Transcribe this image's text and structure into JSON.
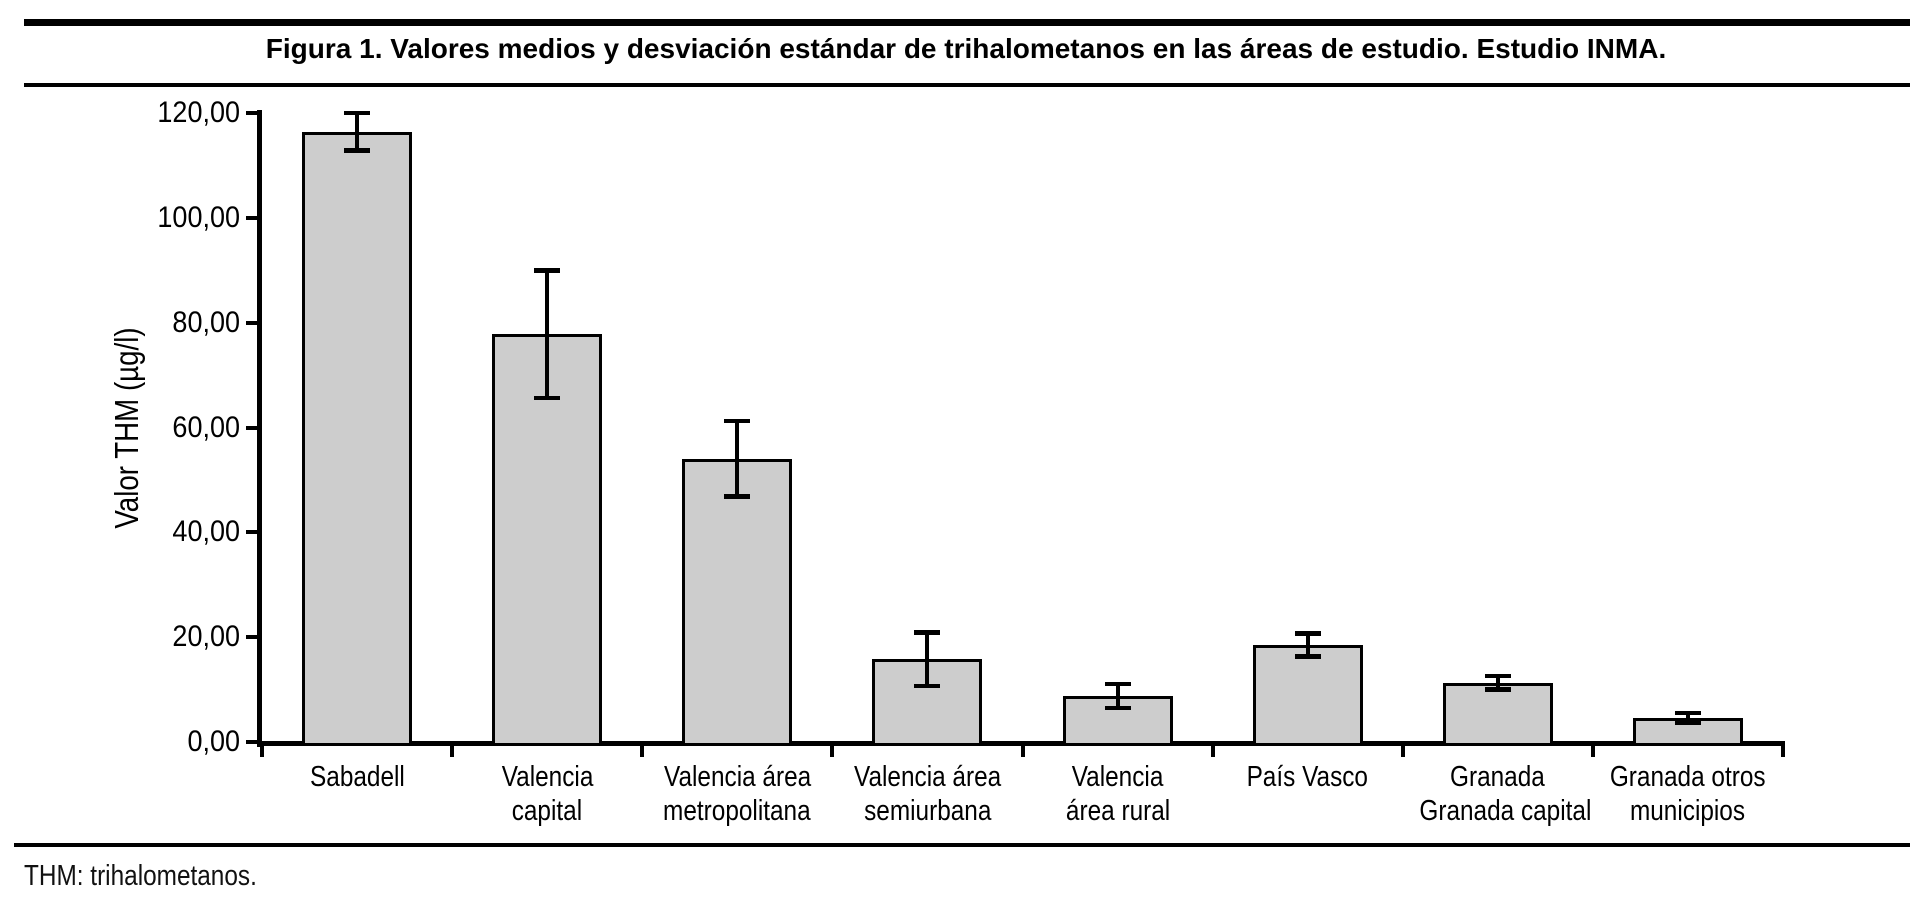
{
  "figure": {
    "title": "Figura 1. Valores medios y desviación estándar de trihalometanos en las áreas de estudio. Estudio INMA.",
    "footnote": "THM: trihalometanos."
  },
  "chart_data": {
    "type": "bar",
    "title": "Figura 1. Valores medios y desviación estándar de trihalometanos en las áreas de estudio. Estudio INMA.",
    "xlabel": "",
    "ylabel": "Valor THM (µg/l)",
    "ylim": [
      0,
      120
    ],
    "grid": false,
    "legend": "none",
    "error_bars": "desviación estándar (±1 SD)",
    "bar_fill_color": "#cdcdcd",
    "bar_border_color": "#000000",
    "categories": [
      "Sabadell",
      "Valencia capital",
      "Valencia área metropolitana",
      "Valencia área semiurbana",
      "Valencia área rural",
      "País Vasco",
      "Granada Granada capital",
      "Granada otros municipios"
    ],
    "category_label_lines": [
      [
        "Sabadell"
      ],
      [
        "Valencia",
        "capital"
      ],
      [
        "Valencia área",
        "metropolitana"
      ],
      [
        "Valencia área",
        "semiurbana"
      ],
      [
        "Valencia",
        "área rural"
      ],
      [
        "País Vasco"
      ],
      [
        "Granada",
        "Granada capital"
      ],
      [
        "Granada otros",
        "municipios"
      ]
    ],
    "values": [
      116.4,
      77.8,
      54.0,
      15.8,
      8.8,
      18.5,
      11.3,
      4.6
    ],
    "std_dev": [
      3.6,
      12.2,
      7.2,
      5.1,
      2.3,
      2.2,
      1.3,
      0.9
    ],
    "yticks": [
      {
        "value": 0,
        "label": "0,00"
      },
      {
        "value": 20,
        "label": "20,00"
      },
      {
        "value": 40,
        "label": "40,00"
      },
      {
        "value": 60,
        "label": "60,00"
      },
      {
        "value": 80,
        "label": "80,00"
      },
      {
        "value": 100,
        "label": "100,00"
      },
      {
        "value": 120,
        "label": "120,00"
      }
    ]
  }
}
